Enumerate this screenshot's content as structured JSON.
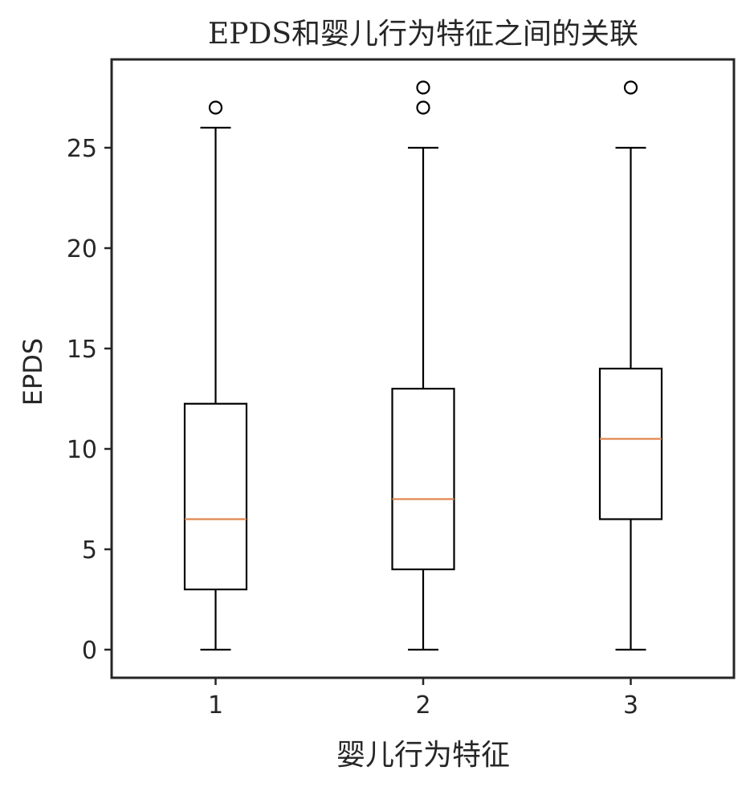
{
  "chart_data": {
    "type": "box",
    "title": "EPDS和婴儿行为特征之间的关联",
    "xlabel": "婴儿行为特征",
    "ylabel": "EPDS",
    "categories": [
      "1",
      "2",
      "3"
    ],
    "y_ticks": [
      "0",
      "5",
      "10",
      "15",
      "20",
      "25"
    ],
    "ylim": [
      -1.4,
      29.4
    ],
    "grid": false,
    "boxes": [
      {
        "category": "1",
        "whisker_low": 0,
        "q1": 3,
        "median": 6.5,
        "q3": 12.25,
        "whisker_high": 26,
        "outliers": [
          27
        ]
      },
      {
        "category": "2",
        "whisker_low": 0,
        "q1": 4,
        "median": 7.5,
        "q3": 13,
        "whisker_high": 25,
        "outliers": [
          27,
          28
        ]
      },
      {
        "category": "3",
        "whisker_low": 0,
        "q1": 6.5,
        "median": 10.5,
        "q3": 14,
        "whisker_high": 25,
        "outliers": [
          28
        ]
      }
    ],
    "colors": {
      "box": "#000000",
      "median": "#e1864f",
      "axes": "#262626"
    }
  }
}
